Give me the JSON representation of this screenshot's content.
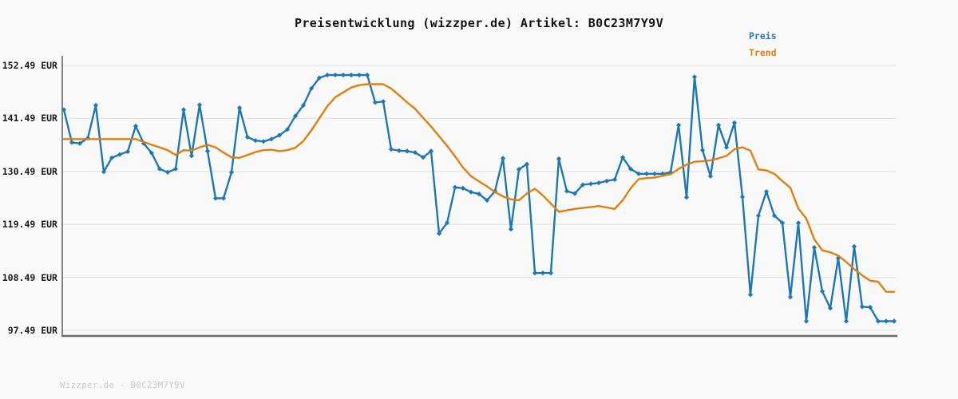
{
  "footer": {
    "text": "Wizzper.de - B0C23M7Y9V"
  },
  "chart_data": {
    "type": "line",
    "title": "Preisentwicklung (wizzper.de) Artikel: B0C23M7Y9V",
    "xlabel": "",
    "ylabel": "",
    "x_axis_labels_visible": false,
    "grid": "horizontal",
    "legend_position": "top-right",
    "ylim": [
      96.3,
      154.5
    ],
    "currency": "EUR",
    "y_ticks": [
      {
        "label": "152.49 EUR",
        "value": 152.49
      },
      {
        "label": "141.49 EUR",
        "value": 141.49
      },
      {
        "label": "130.49 EUR",
        "value": 130.49
      },
      {
        "label": "119.49 EUR",
        "value": 119.49
      },
      {
        "label": "108.49 EUR",
        "value": 108.49
      },
      {
        "label": "97.49 EUR",
        "value": 97.49
      }
    ],
    "series": [
      {
        "name": "Preis",
        "color": "#1f77b4",
        "marker": "diamond",
        "values": [
          143.3,
          136.5,
          136.3,
          137.4,
          144.2,
          130.4,
          133.3,
          134.0,
          134.6,
          139.9,
          136.3,
          134.3,
          131.0,
          130.3,
          131.0,
          143.3,
          133.7,
          144.3,
          134.7,
          124.9,
          124.9,
          130.3,
          143.7,
          137.6,
          136.9,
          136.7,
          137.2,
          138.0,
          139.2,
          142.0,
          144.2,
          147.7,
          149.9,
          150.5,
          150.5,
          150.5,
          150.5,
          150.5,
          150.5,
          144.8,
          145.0,
          135.1,
          134.8,
          134.7,
          134.4,
          133.4,
          134.7,
          117.6,
          119.8,
          127.2,
          127.0,
          126.2,
          125.8,
          124.5,
          126.4,
          133.2,
          118.5,
          130.9,
          132.0,
          109.4,
          109.4,
          109.4,
          133.1,
          126.4,
          125.9,
          127.7,
          127.9,
          128.1,
          128.5,
          128.8,
          133.4,
          131.0,
          130.0,
          130.0,
          130.0,
          130.0,
          130.3,
          140.1,
          125.1,
          150.1,
          134.9,
          129.5,
          140.1,
          135.5,
          140.6,
          125.2,
          104.9,
          121.3,
          126.3,
          121.3,
          119.8,
          104.4,
          119.8,
          99.4,
          114.7,
          105.6,
          102.1,
          112.5,
          99.4,
          114.9,
          102.4,
          102.3,
          99.4,
          99.4,
          99.4
        ]
      },
      {
        "name": "Trend",
        "color": "#e07f0e",
        "marker": "none",
        "values": [
          137.2,
          137.2,
          137.2,
          137.2,
          137.2,
          137.2,
          137.2,
          137.2,
          137.2,
          137.2,
          136.6,
          136.0,
          135.5,
          134.9,
          133.9,
          134.9,
          134.8,
          135.5,
          136.0,
          135.5,
          134.4,
          133.4,
          133.3,
          133.9,
          134.5,
          134.9,
          135.0,
          134.7,
          134.9,
          135.4,
          136.8,
          139.0,
          141.5,
          144.0,
          145.9,
          146.9,
          147.9,
          148.4,
          148.6,
          148.6,
          148.6,
          147.7,
          146.3,
          144.8,
          143.5,
          141.6,
          139.8,
          137.8,
          135.8,
          133.6,
          131.3,
          129.5,
          128.4,
          127.4,
          126.2,
          125.3,
          124.7,
          124.5,
          125.9,
          126.9,
          125.5,
          123.8,
          122.1,
          122.4,
          122.7,
          122.9,
          123.1,
          123.3,
          123.0,
          122.7,
          124.5,
          127.0,
          128.9,
          129.1,
          129.2,
          129.6,
          129.9,
          131.0,
          131.9,
          132.5,
          132.6,
          132.8,
          133.2,
          133.7,
          135.1,
          135.5,
          134.8,
          130.9,
          130.7,
          130.0,
          128.5,
          127.1,
          122.8,
          120.7,
          116.4,
          114.1,
          113.7,
          113.0,
          111.7,
          110.2,
          108.9,
          107.8,
          107.6,
          105.5,
          105.5
        ]
      }
    ],
    "style": {
      "background": "#f9f9f9",
      "gridline_color": "#e7e7e7",
      "spine_color": "#6d6d6d",
      "tick_label_color": "#1b1b1b",
      "watermark_color": "#c9c9c9"
    }
  }
}
